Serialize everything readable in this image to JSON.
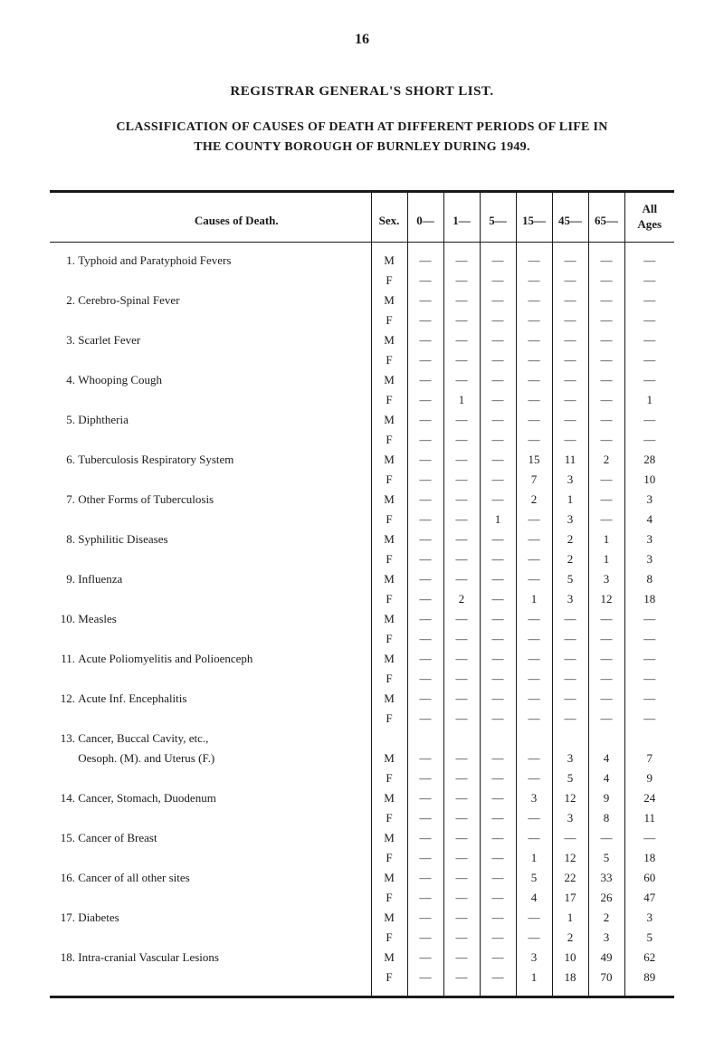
{
  "page_number": "16",
  "title_main": "REGISTRAR GENERAL'S SHORT LIST.",
  "title_sub_line1": "CLASSIFICATION OF CAUSES OF DEATH AT DIFFERENT PERIODS OF LIFE IN",
  "title_sub_line2": "THE COUNTY BOROUGH OF BURNLEY DURING 1949.",
  "headers": {
    "cause": "Causes of Death.",
    "sex": "Sex.",
    "col0": "0—",
    "col1": "1—",
    "col5": "5—",
    "col15": "15—",
    "col45": "45—",
    "col65": "65—",
    "ages": "All\nAges"
  },
  "rows": [
    {
      "num": "1.",
      "cause": "Typhoid and Paratyphoid Fevers",
      "sex": "M",
      "c0": "—",
      "c1": "—",
      "c5": "—",
      "c15": "—",
      "c45": "—",
      "c65": "—",
      "ages": "—"
    },
    {
      "num": "",
      "cause": "",
      "sex": "F",
      "c0": "—",
      "c1": "—",
      "c5": "—",
      "c15": "—",
      "c45": "—",
      "c65": "—",
      "ages": "—"
    },
    {
      "num": "2.",
      "cause": "Cerebro-Spinal Fever",
      "sex": "M",
      "c0": "—",
      "c1": "—",
      "c5": "—",
      "c15": "—",
      "c45": "—",
      "c65": "—",
      "ages": "—"
    },
    {
      "num": "",
      "cause": "",
      "sex": "F",
      "c0": "—",
      "c1": "—",
      "c5": "—",
      "c15": "—",
      "c45": "—",
      "c65": "—",
      "ages": "—"
    },
    {
      "num": "3.",
      "cause": "Scarlet Fever",
      "sex": "M",
      "c0": "—",
      "c1": "—",
      "c5": "—",
      "c15": "—",
      "c45": "—",
      "c65": "—",
      "ages": "—"
    },
    {
      "num": "",
      "cause": "",
      "sex": "F",
      "c0": "—",
      "c1": "—",
      "c5": "—",
      "c15": "—",
      "c45": "—",
      "c65": "—",
      "ages": "—"
    },
    {
      "num": "4.",
      "cause": "Whooping Cough",
      "sex": "M",
      "c0": "—",
      "c1": "—",
      "c5": "—",
      "c15": "—",
      "c45": "—",
      "c65": "—",
      "ages": "—"
    },
    {
      "num": "",
      "cause": "",
      "sex": "F",
      "c0": "—",
      "c1": "1",
      "c5": "—",
      "c15": "—",
      "c45": "—",
      "c65": "—",
      "ages": "1"
    },
    {
      "num": "5.",
      "cause": "Diphtheria",
      "sex": "M",
      "c0": "—",
      "c1": "—",
      "c5": "—",
      "c15": "—",
      "c45": "—",
      "c65": "—",
      "ages": "—"
    },
    {
      "num": "",
      "cause": "",
      "sex": "F",
      "c0": "—",
      "c1": "—",
      "c5": "—",
      "c15": "—",
      "c45": "—",
      "c65": "—",
      "ages": "—"
    },
    {
      "num": "6.",
      "cause": "Tuberculosis Respiratory System",
      "sex": "M",
      "c0": "—",
      "c1": "—",
      "c5": "—",
      "c15": "15",
      "c45": "11",
      "c65": "2",
      "ages": "28"
    },
    {
      "num": "",
      "cause": "",
      "sex": "F",
      "c0": "—",
      "c1": "—",
      "c5": "—",
      "c15": "7",
      "c45": "3",
      "c65": "—",
      "ages": "10"
    },
    {
      "num": "7.",
      "cause": "Other Forms of Tuberculosis",
      "sex": "M",
      "c0": "—",
      "c1": "—",
      "c5": "—",
      "c15": "2",
      "c45": "1",
      "c65": "—",
      "ages": "3"
    },
    {
      "num": "",
      "cause": "",
      "sex": "F",
      "c0": "—",
      "c1": "—",
      "c5": "1",
      "c15": "—",
      "c45": "3",
      "c65": "—",
      "ages": "4"
    },
    {
      "num": "8.",
      "cause": "Syphilitic Diseases",
      "sex": "M",
      "c0": "—",
      "c1": "—",
      "c5": "—",
      "c15": "—",
      "c45": "2",
      "c65": "1",
      "ages": "3"
    },
    {
      "num": "",
      "cause": "",
      "sex": "F",
      "c0": "—",
      "c1": "—",
      "c5": "—",
      "c15": "—",
      "c45": "2",
      "c65": "1",
      "ages": "3"
    },
    {
      "num": "9.",
      "cause": "Influenza",
      "sex": "M",
      "c0": "—",
      "c1": "—",
      "c5": "—",
      "c15": "—",
      "c45": "5",
      "c65": "3",
      "ages": "8"
    },
    {
      "num": "",
      "cause": "",
      "sex": "F",
      "c0": "—",
      "c1": "2",
      "c5": "—",
      "c15": "1",
      "c45": "3",
      "c65": "12",
      "ages": "18"
    },
    {
      "num": "10.",
      "cause": "Measles",
      "sex": "M",
      "c0": "—",
      "c1": "—",
      "c5": "—",
      "c15": "—",
      "c45": "—",
      "c65": "—",
      "ages": "—"
    },
    {
      "num": "",
      "cause": "",
      "sex": "F",
      "c0": "—",
      "c1": "—",
      "c5": "—",
      "c15": "—",
      "c45": "—",
      "c65": "—",
      "ages": "—"
    },
    {
      "num": "11.",
      "cause": "Acute Poliomyelitis and Polioenceph",
      "sex": "M",
      "c0": "—",
      "c1": "—",
      "c5": "—",
      "c15": "—",
      "c45": "—",
      "c65": "—",
      "ages": "—"
    },
    {
      "num": "",
      "cause": "",
      "sex": "F",
      "c0": "—",
      "c1": "—",
      "c5": "—",
      "c15": "—",
      "c45": "—",
      "c65": "—",
      "ages": "—"
    },
    {
      "num": "12.",
      "cause": "Acute Inf. Encephalitis",
      "sex": "M",
      "c0": "—",
      "c1": "—",
      "c5": "—",
      "c15": "—",
      "c45": "—",
      "c65": "—",
      "ages": "—"
    },
    {
      "num": "",
      "cause": "",
      "sex": "F",
      "c0": "—",
      "c1": "—",
      "c5": "—",
      "c15": "—",
      "c45": "—",
      "c65": "—",
      "ages": "—"
    },
    {
      "num": "13.",
      "cause": "Cancer, Buccal Cavity, etc.,",
      "sex": "",
      "c0": "",
      "c1": "",
      "c5": "",
      "c15": "",
      "c45": "",
      "c65": "",
      "ages": ""
    },
    {
      "num": "",
      "cause": "Oesoph. (M). and Uterus (F.)",
      "sex": "M",
      "c0": "—",
      "c1": "—",
      "c5": "—",
      "c15": "—",
      "c45": "3",
      "c65": "4",
      "ages": "7"
    },
    {
      "num": "",
      "cause": "",
      "sex": "F",
      "c0": "—",
      "c1": "—",
      "c5": "—",
      "c15": "—",
      "c45": "5",
      "c65": "4",
      "ages": "9"
    },
    {
      "num": "14.",
      "cause": "Cancer, Stomach, Duodenum",
      "sex": "M",
      "c0": "—",
      "c1": "—",
      "c5": "—",
      "c15": "3",
      "c45": "12",
      "c65": "9",
      "ages": "24"
    },
    {
      "num": "",
      "cause": "",
      "sex": "F",
      "c0": "—",
      "c1": "—",
      "c5": "—",
      "c15": "—",
      "c45": "3",
      "c65": "8",
      "ages": "11"
    },
    {
      "num": "15.",
      "cause": "Cancer of Breast",
      "sex": "M",
      "c0": "—",
      "c1": "—",
      "c5": "—",
      "c15": "—",
      "c45": "—",
      "c65": "—",
      "ages": "—"
    },
    {
      "num": "",
      "cause": "",
      "sex": "F",
      "c0": "—",
      "c1": "—",
      "c5": "—",
      "c15": "1",
      "c45": "12",
      "c65": "5",
      "ages": "18"
    },
    {
      "num": "16.",
      "cause": "Cancer of all other sites",
      "sex": "M",
      "c0": "—",
      "c1": "—",
      "c5": "—",
      "c15": "5",
      "c45": "22",
      "c65": "33",
      "ages": "60"
    },
    {
      "num": "",
      "cause": "",
      "sex": "F",
      "c0": "—",
      "c1": "—",
      "c5": "—",
      "c15": "4",
      "c45": "17",
      "c65": "26",
      "ages": "47"
    },
    {
      "num": "17.",
      "cause": "Diabetes",
      "sex": "M",
      "c0": "—",
      "c1": "—",
      "c5": "—",
      "c15": "—",
      "c45": "1",
      "c65": "2",
      "ages": "3"
    },
    {
      "num": "",
      "cause": "",
      "sex": "F",
      "c0": "—",
      "c1": "—",
      "c5": "—",
      "c15": "—",
      "c45": "2",
      "c65": "3",
      "ages": "5"
    },
    {
      "num": "18.",
      "cause": "Intra-cranial Vascular Lesions",
      "sex": "M",
      "c0": "—",
      "c1": "—",
      "c5": "—",
      "c15": "3",
      "c45": "10",
      "c65": "49",
      "ages": "62"
    },
    {
      "num": "",
      "cause": "",
      "sex": "F",
      "c0": "—",
      "c1": "—",
      "c5": "—",
      "c15": "1",
      "c45": "18",
      "c65": "70",
      "ages": "89"
    }
  ]
}
